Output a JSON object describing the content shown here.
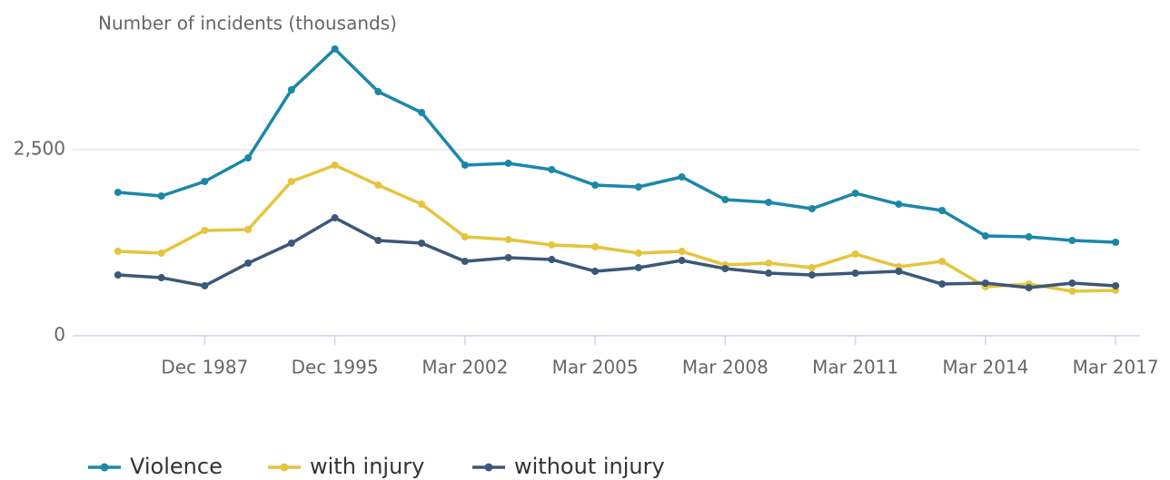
{
  "chart_data": {
    "type": "line",
    "title": "Number of incidents (thousands)",
    "categories": [
      null,
      null,
      "Dec 1987",
      null,
      null,
      "Dec 1995",
      null,
      null,
      "Mar 2002",
      null,
      null,
      "Mar 2005",
      null,
      null,
      "Mar 2008",
      null,
      null,
      "Mar 2011",
      null,
      null,
      "Mar 2014",
      null,
      null,
      "Mar 2017"
    ],
    "series": [
      {
        "name": "Violence",
        "color": "#1a87ab",
        "values": [
          1927,
          1878,
          2073,
          2390,
          3305,
          3854,
          3280,
          3000,
          2293,
          2317,
          2232,
          2024,
          2000,
          2134,
          1829,
          1793,
          1707,
          1915,
          1768,
          1683,
          1341,
          1329,
          1280,
          1256
        ]
      },
      {
        "name": "with injury",
        "color": "#e6c43c",
        "values": [
          1134,
          1110,
          1415,
          1427,
          2073,
          2293,
          2024,
          1768,
          1329,
          1293,
          1220,
          1195,
          1110,
          1134,
          951,
          976,
          915,
          1098,
          927,
          1000,
          659,
          695,
          598,
          610
        ]
      },
      {
        "name": "without injury",
        "color": "#3b5878",
        "values": [
          817,
          780,
          671,
          976,
          1244,
          1585,
          1280,
          1244,
          1000,
          1049,
          1024,
          866,
          915,
          1012,
          902,
          841,
          817,
          841,
          866,
          695,
          707,
          646,
          707,
          671
        ]
      }
    ],
    "ylim": [
      0,
      4000
    ],
    "yticks": [
      0,
      {
        "value": 2500,
        "label": "2,500"
      }
    ],
    "grid": true,
    "legend": "bottom"
  }
}
